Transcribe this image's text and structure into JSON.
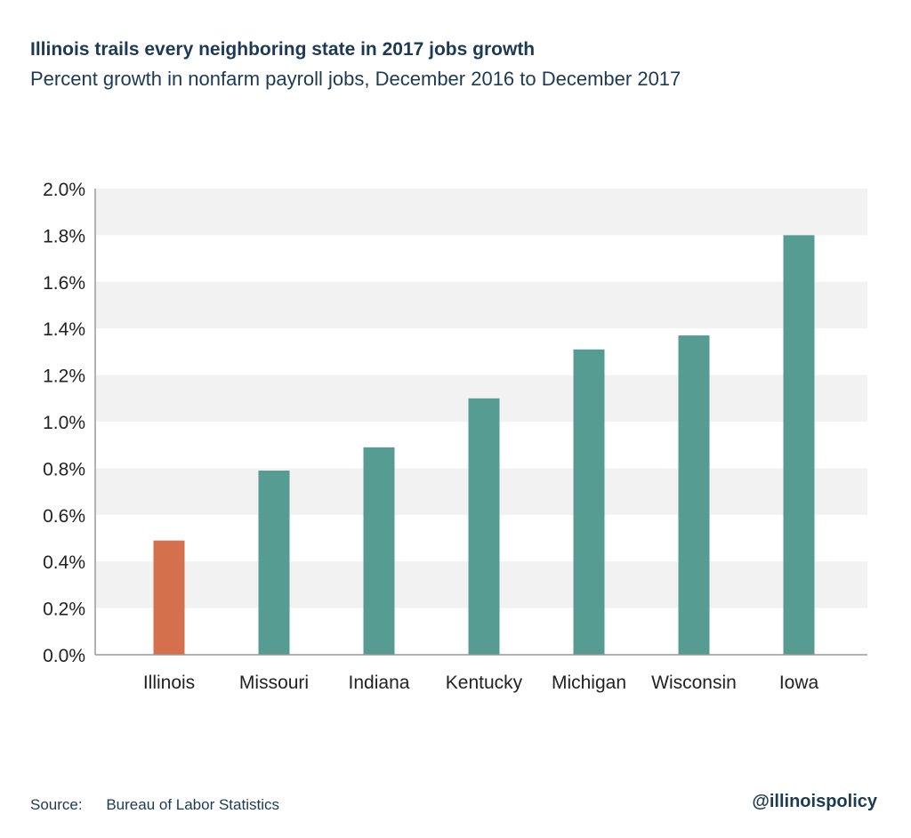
{
  "title": "Illinois trails every neighboring state in 2017 jobs growth",
  "subtitle": "Percent growth in nonfarm payroll jobs, December 2016 to December 2017",
  "source_label": "Source:",
  "source_text": "Bureau of Labor Statistics",
  "handle": "@illinoispolicy",
  "colors": {
    "highlight": "#d4704c",
    "bar": "#569c92",
    "band": "#f2f2f2",
    "text": "#1d3a55"
  },
  "chart_data": {
    "type": "bar",
    "categories": [
      "Illinois",
      "Missouri",
      "Indiana",
      "Kentucky",
      "Michigan",
      "Wisconsin",
      "Iowa"
    ],
    "values": [
      0.49,
      0.79,
      0.89,
      1.1,
      1.31,
      1.37,
      1.8
    ],
    "highlight": "Illinois",
    "ylim": [
      0,
      2.0
    ],
    "yticks": [
      "0.0%",
      "0.2%",
      "0.4%",
      "0.6%",
      "0.8%",
      "1.0%",
      "1.2%",
      "1.4%",
      "1.6%",
      "1.8%",
      "2.0%"
    ],
    "ytick_values": [
      0,
      0.2,
      0.4,
      0.6,
      0.8,
      1.0,
      1.2,
      1.4,
      1.6,
      1.8,
      2.0
    ],
    "grid": "alternating bands",
    "legend": "none"
  }
}
